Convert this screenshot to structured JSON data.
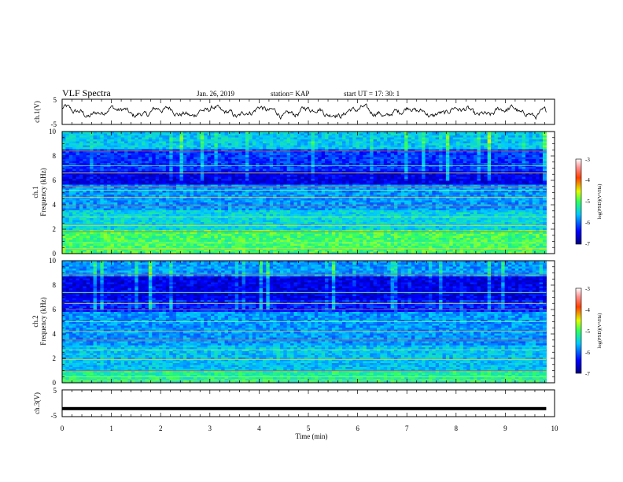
{
  "header": {
    "title": "VLF Spectra",
    "date": "Jan. 26, 2019",
    "station": "station= KAP",
    "start": "start  UT =   17: 30: 1"
  },
  "chart_data": {
    "type": "heatmap",
    "xlabel": "Time  (min)",
    "xlim": [
      0,
      10
    ],
    "xticks": [
      "0",
      "1",
      "2",
      "3",
      "4",
      "5",
      "6",
      "7",
      "8",
      "9",
      "10"
    ],
    "data_end_min": 9.83,
    "panels": [
      {
        "kind": "line",
        "ylabel": "ch.1(V)",
        "ylim": [
          -5,
          5
        ],
        "yticks": [
          "5",
          "-5"
        ],
        "approx_mean": 0,
        "approx_amplitude": 2.5,
        "approx_period_min": 1.0
      },
      {
        "kind": "spectrogram",
        "ylabel_top": "ch.1",
        "ylabel": "Frequency  (kHz)",
        "ylim": [
          0,
          10
        ],
        "yticks": [
          "0",
          "2",
          "4",
          "6",
          "8",
          "10"
        ],
        "colorbar": {
          "label": "log(PSD)(V²/Hz)",
          "range": [
            -7,
            -3
          ],
          "ticks": [
            "-3",
            "-4",
            "-5",
            "-6",
            "-7"
          ]
        }
      },
      {
        "kind": "spectrogram",
        "ylabel_top": "ch.2",
        "ylabel": "Frequency  (kHz)",
        "ylim": [
          0,
          10
        ],
        "yticks": [
          "0",
          "2",
          "4",
          "6",
          "8",
          "10"
        ],
        "colorbar": {
          "label": "log(PSD)(V²/Hz)",
          "range": [
            -7,
            -3
          ],
          "ticks": [
            "-3",
            "-4",
            "-5",
            "-6",
            "-7"
          ]
        }
      },
      {
        "kind": "line",
        "ylabel": "ch.3(V)",
        "ylim": [
          -5,
          5
        ],
        "yticks": [
          "5",
          "-5"
        ],
        "approx_constant": -2.0
      }
    ]
  }
}
